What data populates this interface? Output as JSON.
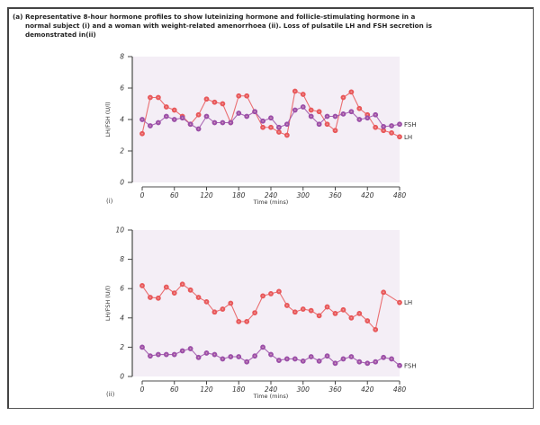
{
  "caption": {
    "tag": "(a)",
    "text": "Representative 8-hour hormone profiles to show luteinizing hormone and follicle-stimulating hormone in a normal subject (i) and a woman with weight-related amenorrhoea (ii). Loss of pulsatile LH and FSH secretion is demonstrated in(ii)"
  },
  "colors": {
    "lh": "#e8585a",
    "fsh": "#9b4fa8",
    "plot_bg": "#f4eef6",
    "axis": "#555555"
  },
  "chart_data": [
    {
      "type": "line",
      "panel_label": "(i)",
      "title": "",
      "xlabel": "Time (mins)",
      "ylabel": "LH/FSH (U/l)",
      "xlim": [
        0,
        480
      ],
      "ylim": [
        0,
        8
      ],
      "xticks": [
        0,
        60,
        120,
        180,
        240,
        300,
        360,
        420,
        480
      ],
      "yticks": [
        0,
        2,
        4,
        6,
        8
      ],
      "grid": false,
      "x": [
        0,
        15,
        30,
        45,
        60,
        75,
        90,
        105,
        120,
        135,
        150,
        165,
        180,
        195,
        210,
        225,
        240,
        255,
        270,
        285,
        300,
        315,
        330,
        345,
        360,
        375,
        390,
        405,
        420,
        435,
        450,
        465,
        480
      ],
      "series": [
        {
          "name": "LH",
          "color": "#e8585a",
          "values": [
            3.1,
            5.4,
            5.4,
            4.8,
            4.6,
            4.2,
            3.7,
            4.3,
            5.3,
            5.1,
            5.0,
            3.8,
            5.5,
            5.5,
            4.5,
            3.5,
            3.5,
            3.2,
            3.0,
            5.8,
            5.6,
            4.6,
            4.5,
            3.7,
            3.3,
            5.4,
            5.75,
            4.7,
            4.3,
            3.5,
            3.3,
            3.15,
            2.9
          ]
        },
        {
          "name": "FSH",
          "color": "#9b4fa8",
          "values": [
            4.0,
            3.6,
            3.8,
            4.2,
            4.0,
            4.1,
            3.7,
            3.4,
            4.2,
            3.8,
            3.8,
            3.8,
            4.4,
            4.2,
            4.5,
            3.9,
            4.1,
            3.5,
            3.7,
            4.6,
            4.8,
            4.2,
            3.7,
            4.2,
            4.2,
            4.35,
            4.5,
            4.0,
            4.1,
            4.3,
            3.55,
            3.6,
            3.7
          ]
        }
      ]
    },
    {
      "type": "line",
      "panel_label": "(ii)",
      "title": "",
      "xlabel": "Time (mins)",
      "ylabel": "LH/FSH (U/l)",
      "xlim": [
        0,
        480
      ],
      "ylim": [
        0,
        10
      ],
      "xticks": [
        0,
        60,
        120,
        180,
        240,
        300,
        360,
        420,
        480
      ],
      "yticks": [
        0,
        2,
        4,
        6,
        8,
        10
      ],
      "grid": false,
      "x": [
        0,
        15,
        30,
        45,
        60,
        75,
        90,
        105,
        120,
        135,
        150,
        165,
        180,
        195,
        210,
        225,
        240,
        255,
        270,
        285,
        300,
        315,
        330,
        345,
        360,
        375,
        390,
        405,
        420,
        435,
        450,
        465,
        480
      ],
      "series": [
        {
          "name": "LH",
          "color": "#e8585a",
          "x": [
            0,
            15,
            30,
            45,
            60,
            75,
            90,
            105,
            120,
            135,
            150,
            165,
            180,
            195,
            210,
            225,
            240,
            255,
            270,
            285,
            300,
            315,
            330,
            345,
            360,
            375,
            390,
            405,
            420,
            435,
            450,
            480
          ],
          "values": [
            6.2,
            5.4,
            5.35,
            6.1,
            5.7,
            6.3,
            5.9,
            5.4,
            5.1,
            4.4,
            4.6,
            5.0,
            3.75,
            3.75,
            4.35,
            5.5,
            5.65,
            5.8,
            4.85,
            4.4,
            4.6,
            4.5,
            4.15,
            4.75,
            4.3,
            4.55,
            4.0,
            4.3,
            3.8,
            3.2,
            5.75,
            5.05
          ]
        },
        {
          "name": "FSH",
          "color": "#9b4fa8",
          "values": [
            2.0,
            1.4,
            1.5,
            1.5,
            1.5,
            1.75,
            1.9,
            1.3,
            1.6,
            1.5,
            1.2,
            1.35,
            1.35,
            1.0,
            1.4,
            2.0,
            1.5,
            1.1,
            1.2,
            1.2,
            1.05,
            1.35,
            1.05,
            1.4,
            0.9,
            1.2,
            1.35,
            1.0,
            0.9,
            1.0,
            1.3,
            1.2,
            0.75
          ]
        }
      ]
    }
  ]
}
